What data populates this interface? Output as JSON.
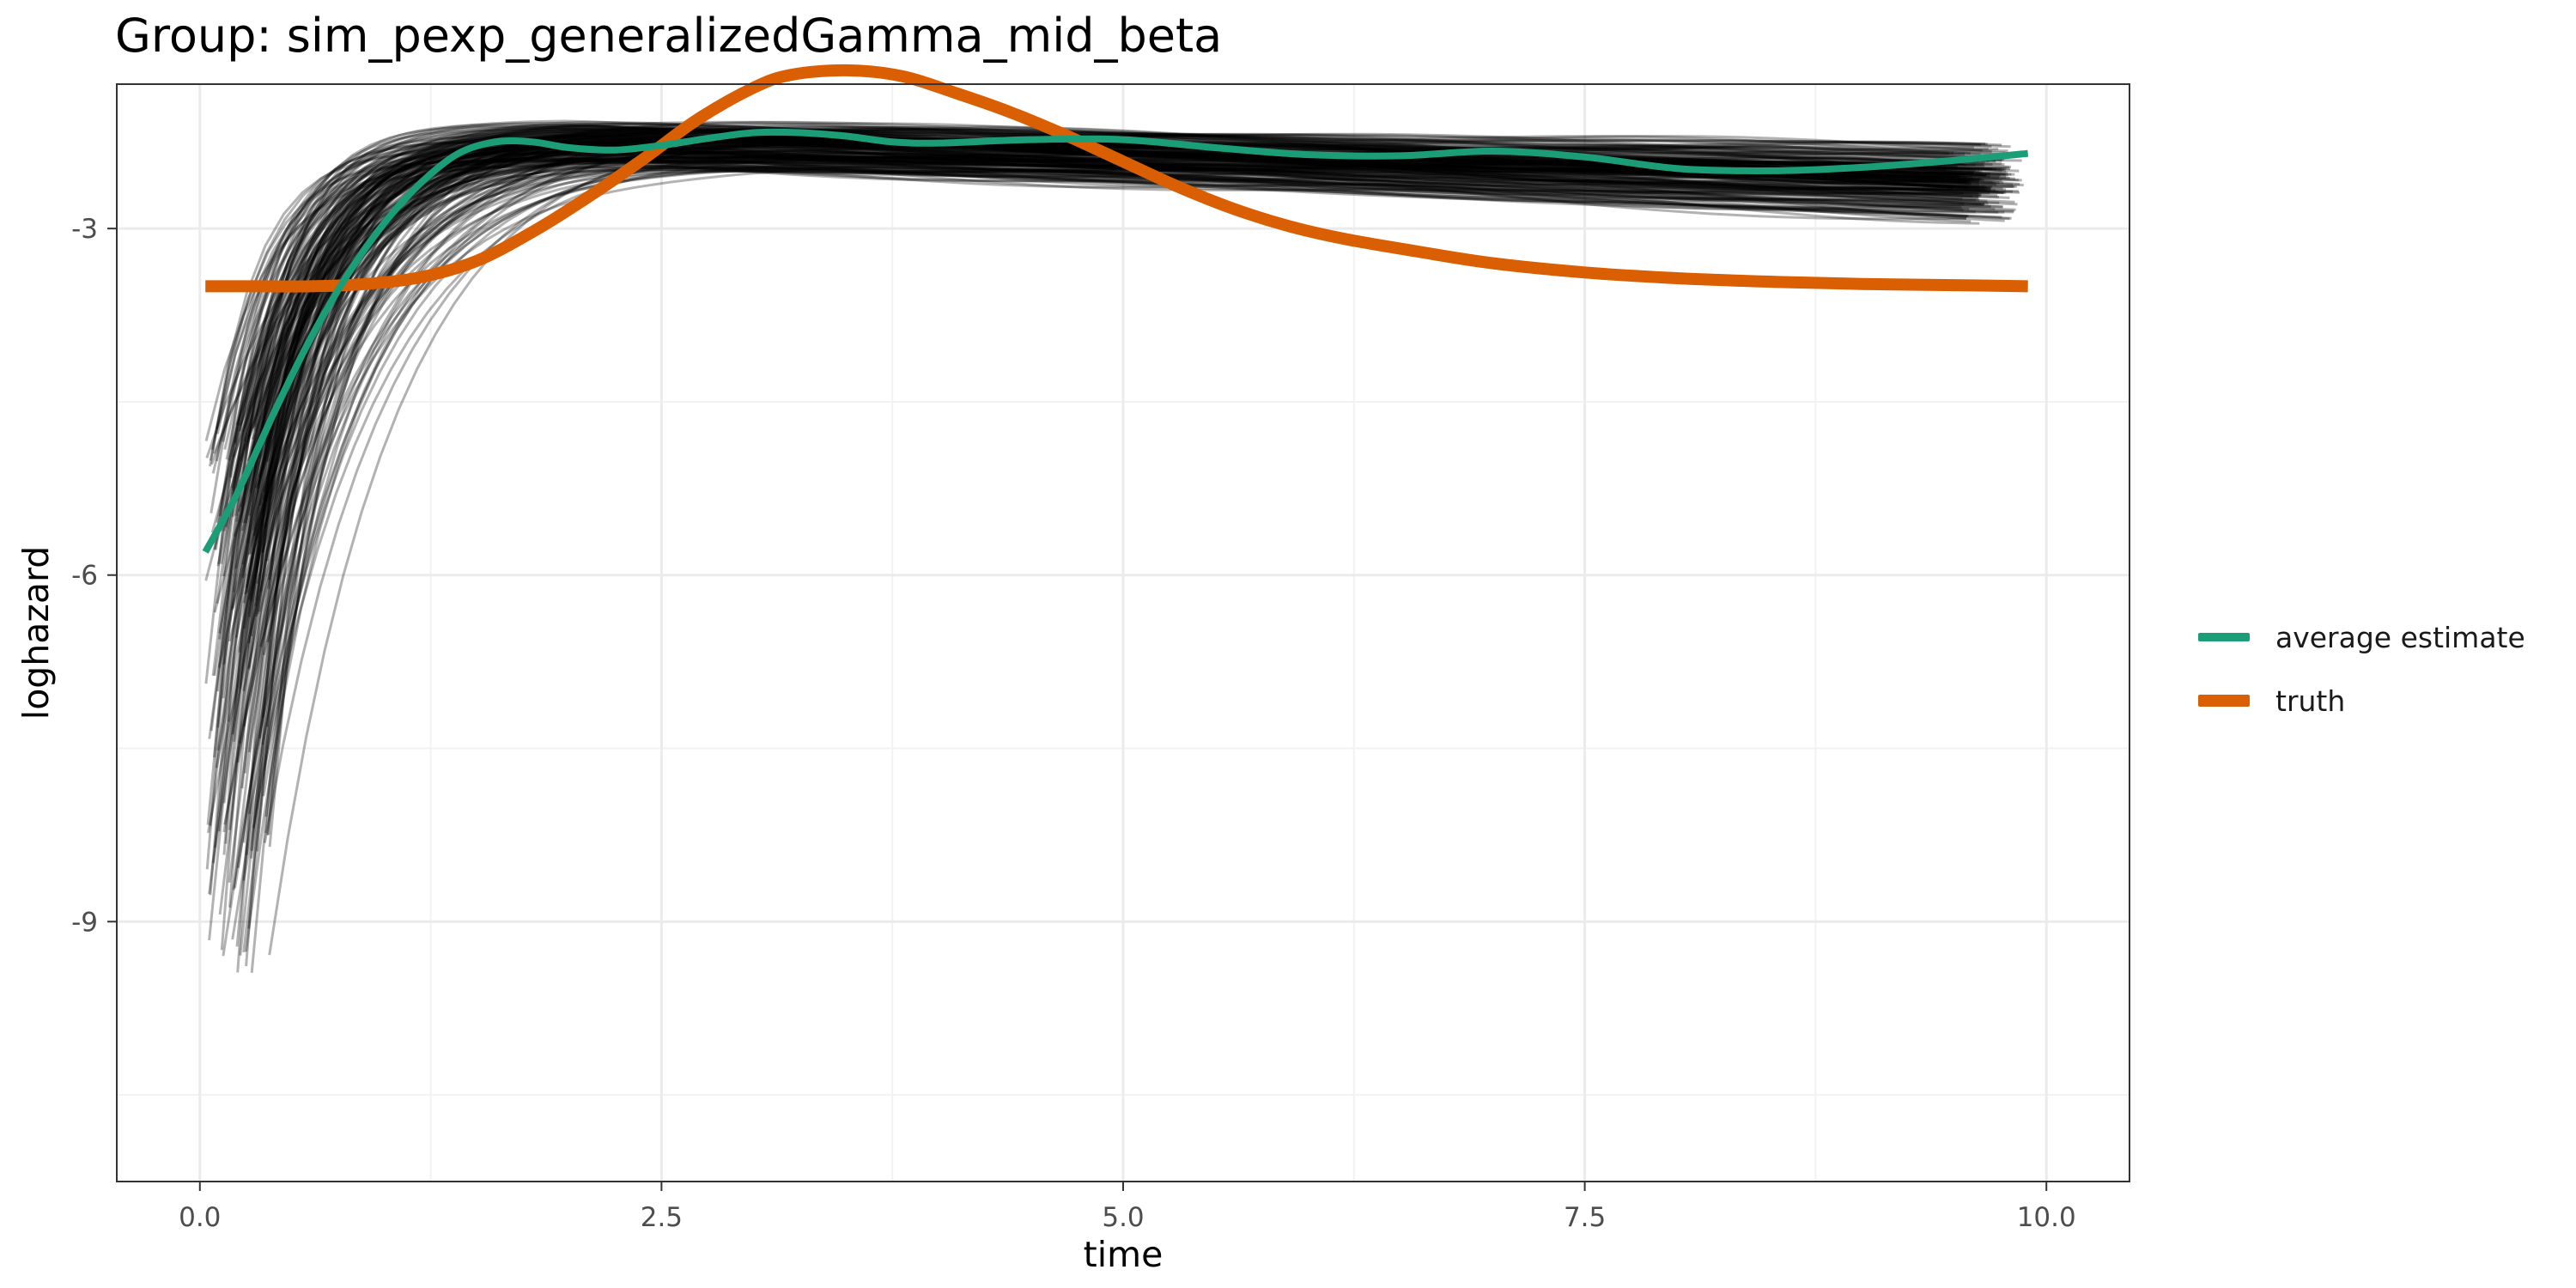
{
  "chart_data": {
    "type": "line",
    "title": "Group: sim_pexp_generalizedGamma_mid_beta",
    "xlabel": "time",
    "ylabel": "loghazard",
    "xlim": [
      -0.45,
      10.45
    ],
    "ylim": [
      -11.25,
      -1.75
    ],
    "xticks": [
      0.0,
      2.5,
      5.0,
      7.5,
      10.0
    ],
    "xtick_labels": [
      "0.0",
      "2.5",
      "5.0",
      "7.5",
      "10.0"
    ],
    "yticks": [
      -3,
      -6,
      -9
    ],
    "ytick_labels": [
      "-3",
      "-6",
      "-9"
    ],
    "grid": true,
    "legend_position": "right",
    "background_series": {
      "description_count": 200,
      "color": "#000000",
      "opacity": 0.3
    },
    "series": [
      {
        "name": "average estimate",
        "color": "#1b9e77",
        "x": [
          0.03,
          0.2,
          0.4,
          0.6,
          0.8,
          1.0,
          1.2,
          1.4,
          1.6,
          1.8,
          2.0,
          2.25,
          2.5,
          2.75,
          3.0,
          3.25,
          3.5,
          3.75,
          4.0,
          4.5,
          5.0,
          5.5,
          6.0,
          6.5,
          7.0,
          7.5,
          8.0,
          8.5,
          9.0,
          9.5,
          9.9
        ],
        "values": [
          -5.8,
          -5.3,
          -4.6,
          -3.95,
          -3.4,
          -2.95,
          -2.6,
          -2.35,
          -2.25,
          -2.25,
          -2.3,
          -2.32,
          -2.28,
          -2.22,
          -2.17,
          -2.17,
          -2.2,
          -2.25,
          -2.26,
          -2.23,
          -2.23,
          -2.3,
          -2.36,
          -2.37,
          -2.33,
          -2.38,
          -2.48,
          -2.5,
          -2.47,
          -2.41,
          -2.35
        ]
      },
      {
        "name": "truth",
        "color": "#d95f02",
        "x": [
          0.03,
          0.3,
          0.6,
          0.9,
          1.2,
          1.5,
          1.8,
          2.1,
          2.4,
          2.7,
          3.0,
          3.2,
          3.5,
          3.8,
          4.1,
          4.4,
          4.7,
          5.0,
          5.3,
          5.6,
          5.9,
          6.2,
          6.6,
          7.0,
          7.5,
          8.0,
          8.5,
          9.0,
          9.5,
          9.9
        ],
        "values": [
          -3.5,
          -3.5,
          -3.5,
          -3.48,
          -3.42,
          -3.28,
          -3.03,
          -2.73,
          -2.4,
          -2.05,
          -1.78,
          -1.67,
          -1.63,
          -1.68,
          -1.83,
          -2.0,
          -2.2,
          -2.42,
          -2.64,
          -2.83,
          -2.98,
          -3.09,
          -3.2,
          -3.3,
          -3.38,
          -3.43,
          -3.46,
          -3.48,
          -3.49,
          -3.5
        ]
      }
    ],
    "legend": [
      {
        "label": "average estimate",
        "color": "#1b9e77"
      },
      {
        "label": "truth",
        "color": "#d95f02"
      }
    ]
  }
}
